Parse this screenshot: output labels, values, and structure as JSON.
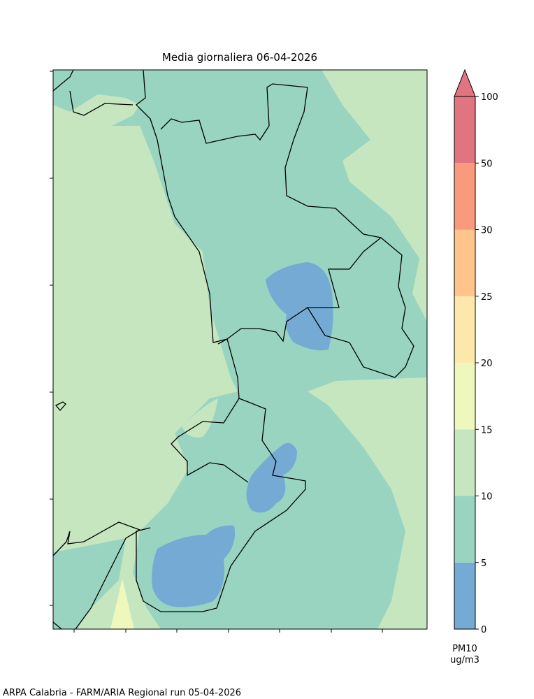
{
  "title": "Media giornaliera 06-04-2026",
  "colorbar": {
    "levels": [
      0,
      5,
      10,
      15,
      20,
      25,
      30,
      50,
      100
    ],
    "colors": [
      "#74aad4",
      "#98d4c0",
      "#c6e6c0",
      "#eef8bc",
      "#fde8ac",
      "#fec48c",
      "#f99a7c",
      "#e07480"
    ],
    "extend_color": "#e07480",
    "quantity": "PM10",
    "unit": "ug/m3"
  },
  "footer": "ARPA Calabria - FARM/ARIA Regional run 05-04-2026"
}
